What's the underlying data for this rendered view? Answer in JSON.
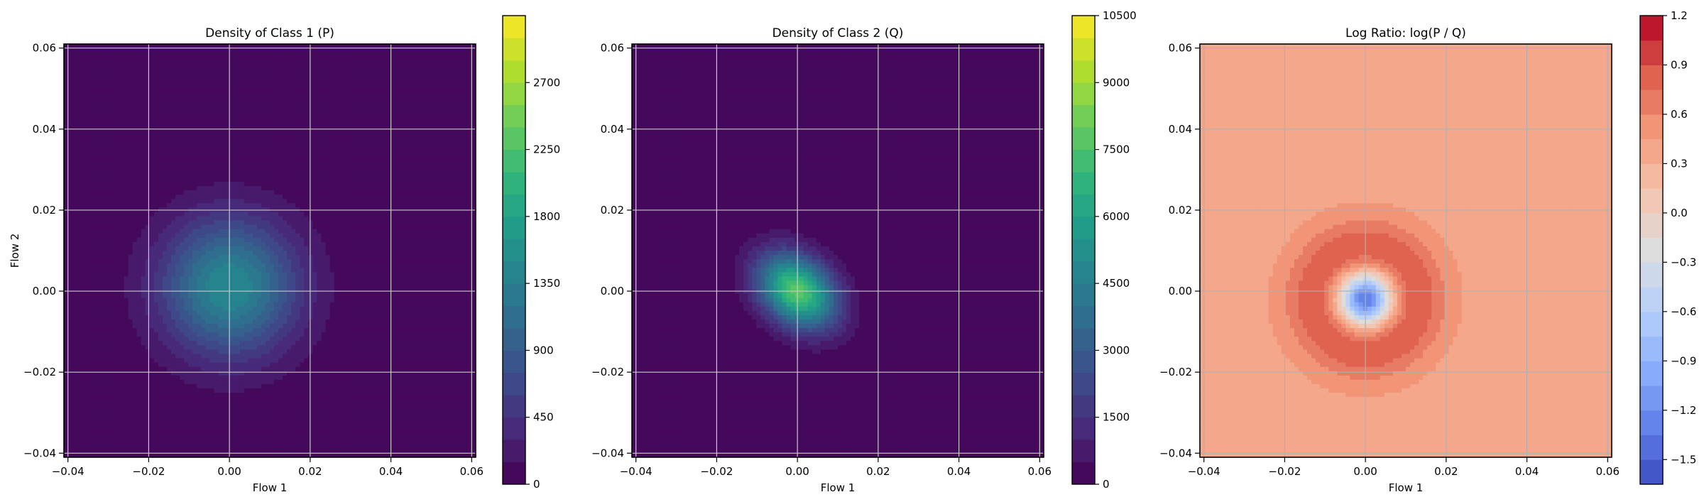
{
  "chart_data": [
    {
      "type": "heatmap",
      "title": "Density of Class 1 (P)",
      "xlabel": "Flow 1",
      "ylabel": "Flow 2",
      "xlim": [
        -0.041,
        0.061
      ],
      "ylim": [
        -0.041,
        0.061
      ],
      "xticks": [
        -0.04,
        -0.02,
        0.0,
        0.02,
        0.04,
        0.06
      ],
      "yticks": [
        -0.04,
        -0.02,
        0.0,
        0.02,
        0.04,
        0.06
      ],
      "xtick_labels": [
        "−0.04",
        "−0.02",
        "0.00",
        "0.02",
        "0.04",
        "0.06"
      ],
      "ytick_labels": [
        "−0.04",
        "−0.02",
        "0.00",
        "0.02",
        "0.04",
        "0.06"
      ],
      "grid": true,
      "colormap": "viridis",
      "colorbar": {
        "min": 0,
        "max": 3150,
        "ticks": [
          0,
          450,
          900,
          1350,
          1800,
          2250,
          2700
        ],
        "tick_labels": [
          "0",
          "450",
          "900",
          "1350",
          "1800",
          "2250",
          "2700"
        ]
      },
      "density": {
        "peak": 1500,
        "center": [
          0.0,
          0.001
        ],
        "sigma": [
          0.012,
          0.012
        ],
        "rotation_deg": 0
      }
    },
    {
      "type": "heatmap",
      "title": "Density of Class 2 (Q)",
      "xlabel": "Flow 1",
      "ylabel": "",
      "xlim": [
        -0.041,
        0.061
      ],
      "ylim": [
        -0.041,
        0.061
      ],
      "xticks": [
        -0.04,
        -0.02,
        0.0,
        0.02,
        0.04,
        0.06
      ],
      "yticks": [
        -0.04,
        -0.02,
        0.0,
        0.02,
        0.04,
        0.06
      ],
      "xtick_labels": [
        "−0.04",
        "−0.02",
        "0.00",
        "0.02",
        "0.04",
        "0.06"
      ],
      "ytick_labels": [
        "−0.04",
        "−0.02",
        "0.00",
        "0.02",
        "0.04",
        "0.06"
      ],
      "grid": true,
      "colormap": "viridis",
      "colorbar": {
        "min": 0,
        "max": 10500,
        "ticks": [
          0,
          1500,
          3000,
          4500,
          6000,
          7500,
          9000,
          10500
        ],
        "tick_labels": [
          "0",
          "1500",
          "3000",
          "4500",
          "6000",
          "7500",
          "9000",
          "10500"
        ]
      },
      "density": {
        "peak": 7800,
        "center": [
          0.0,
          0.0
        ],
        "sigma": [
          0.0075,
          0.0055
        ],
        "rotation_deg": -40
      }
    },
    {
      "type": "heatmap",
      "title": "Log Ratio: log(P / Q)",
      "xlabel": "Flow 1",
      "ylabel": "",
      "xlim": [
        -0.041,
        0.061
      ],
      "ylim": [
        -0.041,
        0.061
      ],
      "xticks": [
        -0.04,
        -0.02,
        0.0,
        0.02,
        0.04,
        0.06
      ],
      "yticks": [
        -0.04,
        -0.02,
        0.0,
        0.02,
        0.04,
        0.06
      ],
      "xtick_labels": [
        "−0.04",
        "−0.02",
        "0.00",
        "0.02",
        "0.04",
        "0.06"
      ],
      "ytick_labels": [
        "−0.04",
        "−0.02",
        "0.00",
        "0.02",
        "0.04",
        "0.06"
      ],
      "grid": true,
      "colormap": "coolwarm",
      "colorbar": {
        "min": -1.65,
        "max": 1.2,
        "ticks": [
          -1.5,
          -1.2,
          -0.9,
          -0.6,
          -0.3,
          0.0,
          0.3,
          0.6,
          0.9,
          1.2
        ],
        "tick_labels": [
          "−1.5",
          "−1.2",
          "−0.9",
          "−0.6",
          "−0.3",
          "0.0",
          "0.3",
          "0.6",
          "0.9",
          "1.2"
        ]
      },
      "ratio": {
        "background": 0.4,
        "ring_peak": 0.9,
        "ring_radius": 0.012,
        "center_min": -1.4,
        "center": [
          0.0,
          -0.002
        ]
      }
    }
  ]
}
